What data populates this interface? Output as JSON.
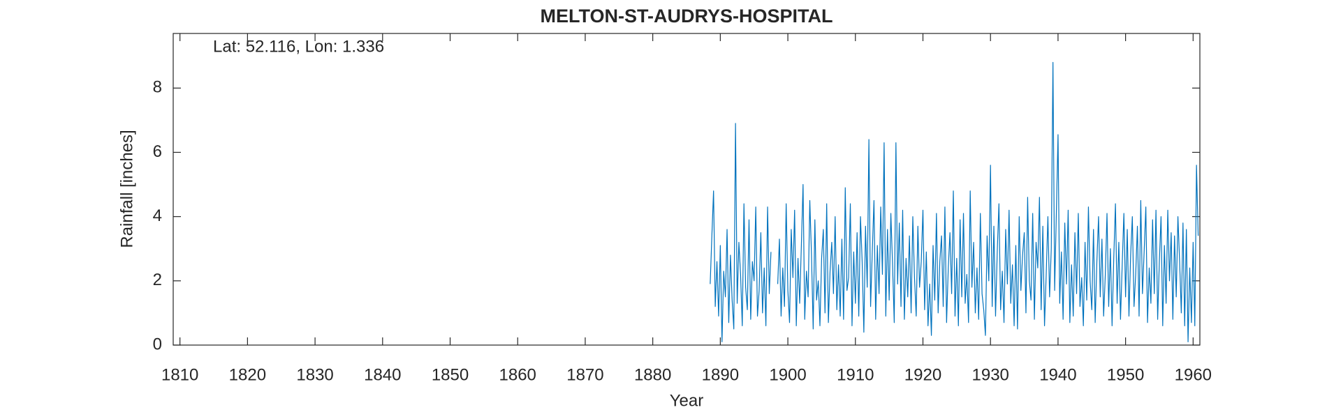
{
  "chart_data": {
    "type": "line",
    "title": "MELTON-ST-AUDRYS-HOSPITAL",
    "annotation": "Lat: 52.116, Lon: 1.336",
    "xlabel": "Year",
    "ylabel": "Rainfall [inches]",
    "color": "#0072BD",
    "xlim": [
      1809,
      1961
    ],
    "ylim": [
      0,
      9.7
    ],
    "xticks": [
      1810,
      1820,
      1830,
      1840,
      1850,
      1860,
      1870,
      1880,
      1890,
      1900,
      1910,
      1920,
      1930,
      1940,
      1950,
      1960
    ],
    "yticks": [
      0,
      2,
      4,
      6,
      8
    ],
    "x": [
      1888.5,
      1888.75,
      1889,
      1889.25,
      1889.5,
      1889.75,
      1890,
      1890.25,
      1890.5,
      1890.75,
      1891,
      1891.25,
      1891.5,
      1891.75,
      1892,
      1892.25,
      1892.5,
      1892.75,
      1893,
      1893.25,
      1893.5,
      1893.75,
      1894,
      1894.25,
      1894.5,
      1894.75,
      1895,
      1895.25,
      1895.5,
      1895.75,
      1896,
      1896.25,
      1896.5,
      1896.75,
      1897,
      1897.25,
      1897.5,
      1897.75,
      1898,
      1898.25,
      1898.5,
      1898.75,
      1899,
      1899.25,
      1899.5,
      1899.75,
      1900,
      1900.25,
      1900.5,
      1900.75,
      1901,
      1901.25,
      1901.5,
      1901.75,
      1902,
      1902.25,
      1902.5,
      1902.75,
      1903,
      1903.25,
      1903.5,
      1903.75,
      1904,
      1904.25,
      1904.5,
      1904.75,
      1905,
      1905.25,
      1905.5,
      1905.75,
      1906,
      1906.25,
      1906.5,
      1906.75,
      1907,
      1907.25,
      1907.5,
      1907.75,
      1908,
      1908.25,
      1908.5,
      1908.75,
      1909,
      1909.25,
      1909.5,
      1909.75,
      1910,
      1910.25,
      1910.5,
      1910.75,
      1911,
      1911.25,
      1911.5,
      1911.75,
      1912,
      1912.25,
      1912.5,
      1912.75,
      1913,
      1913.25,
      1913.5,
      1913.75,
      1914,
      1914.25,
      1914.5,
      1914.75,
      1915,
      1915.25,
      1915.5,
      1915.75,
      1916,
      1916.25,
      1916.5,
      1916.75,
      1917,
      1917.25,
      1917.5,
      1917.75,
      1918,
      1918.25,
      1918.5,
      1918.75,
      1919,
      1919.25,
      1919.5,
      1919.75,
      1920,
      1920.25,
      1920.5,
      1920.75,
      1921,
      1921.25,
      1921.5,
      1921.75,
      1922,
      1922.25,
      1922.5,
      1922.75,
      1923,
      1923.25,
      1923.5,
      1923.75,
      1924,
      1924.25,
      1924.5,
      1924.75,
      1925,
      1925.25,
      1925.5,
      1925.75,
      1926,
      1926.25,
      1926.5,
      1926.75,
      1927,
      1927.25,
      1927.5,
      1927.75,
      1928,
      1928.25,
      1928.5,
      1928.75,
      1929,
      1929.25,
      1929.5,
      1929.75,
      1930,
      1930.25,
      1930.5,
      1930.75,
      1931,
      1931.25,
      1931.5,
      1931.75,
      1932,
      1932.25,
      1932.5,
      1932.75,
      1933,
      1933.25,
      1933.5,
      1933.75,
      1934,
      1934.25,
      1934.5,
      1934.75,
      1935,
      1935.25,
      1935.5,
      1935.75,
      1936,
      1936.25,
      1936.5,
      1936.75,
      1937,
      1937.25,
      1937.5,
      1937.75,
      1938,
      1938.25,
      1938.5,
      1938.75,
      1939,
      1939.25,
      1939.5,
      1939.75,
      1940,
      1940.25,
      1940.5,
      1940.75,
      1941,
      1941.25,
      1941.5,
      1941.75,
      1942,
      1942.25,
      1942.5,
      1942.75,
      1943,
      1943.25,
      1943.5,
      1943.75,
      1944,
      1944.25,
      1944.5,
      1944.75,
      1945,
      1945.25,
      1945.5,
      1945.75,
      1946,
      1946.25,
      1946.5,
      1946.75,
      1947,
      1947.25,
      1947.5,
      1947.75,
      1948,
      1948.25,
      1948.5,
      1948.75,
      1949,
      1949.25,
      1949.5,
      1949.75,
      1950,
      1950.25,
      1950.5,
      1950.75,
      1951,
      1951.25,
      1951.5,
      1951.75,
      1952,
      1952.25,
      1952.5,
      1952.75,
      1953,
      1953.25,
      1953.5,
      1953.75,
      1954,
      1954.25,
      1954.5,
      1954.75,
      1955,
      1955.25,
      1955.5,
      1955.75,
      1956,
      1956.25,
      1956.5,
      1956.75,
      1957,
      1957.25,
      1957.5,
      1957.75,
      1958,
      1958.25,
      1958.5,
      1958.75,
      1959,
      1959.25,
      1959.5,
      1959.75,
      1960,
      1960.25,
      1960.5,
      1960.75
    ],
    "values": [
      1.9,
      3.4,
      4.8,
      1.2,
      2.6,
      0.9,
      3.1,
      0.1,
      2.3,
      1.5,
      3.6,
      0.7,
      2.8,
      1.4,
      0.5,
      6.9,
      1.3,
      3.2,
      2.2,
      0.6,
      4.4,
      1.8,
      1.1,
      3.9,
      0.8,
      2.6,
      2.0,
      4.3,
      0.9,
      1.7,
      3.5,
      1.0,
      2.4,
      0.6,
      4.3,
      1.6,
      2.9,
      null,
      null,
      null,
      1.9,
      3.3,
      0.9,
      2.4,
      1.2,
      4.4,
      1.7,
      0.7,
      3.6,
      2.1,
      4.2,
      0.6,
      2.7,
      1.3,
      3.1,
      5.0,
      0.8,
      2.3,
      1.5,
      4.5,
      2.8,
      0.5,
      3.9,
      1.4,
      2.0,
      0.6,
      2.7,
      3.6,
      1.0,
      4.4,
      0.7,
      2.3,
      3.2,
      1.6,
      4.0,
      1.1,
      2.5,
      0.9,
      3.3,
      0.8,
      4.9,
      1.7,
      2.1,
      4.4,
      0.6,
      2.9,
      1.3,
      3.5,
      0.9,
      4.0,
      2.6,
      0.4,
      3.7,
      1.8,
      6.4,
      1.2,
      2.9,
      4.5,
      0.8,
      3.1,
      1.6,
      4.3,
      2.2,
      6.3,
      0.9,
      3.6,
      1.4,
      4.1,
      2.5,
      0.7,
      6.3,
      1.9,
      3.8,
      1.2,
      4.2,
      0.8,
      2.7,
      1.5,
      3.4,
      1.0,
      4.0,
      2.1,
      0.9,
      3.7,
      1.8,
      2.6,
      4.2,
      1.1,
      2.9,
      0.6,
      1.9,
      0.3,
      3.1,
      1.4,
      4.1,
      1.0,
      2.6,
      3.4,
      1.2,
      4.3,
      0.7,
      2.4,
      3.5,
      1.6,
      4.8,
      0.9,
      2.7,
      0.6,
      3.9,
      1.5,
      4.1,
      1.3,
      2.2,
      0.7,
      4.8,
      1.8,
      3.2,
      1.0,
      2.4,
      0.8,
      4.1,
      1.6,
      1.1,
      0.3,
      3.4,
      2.0,
      5.6,
      1.2,
      3.7,
      0.9,
      2.9,
      4.4,
      1.1,
      2.3,
      0.7,
      3.6,
      1.9,
      4.2,
      1.3,
      2.5,
      0.6,
      3.1,
      0.5,
      4.0,
      1.7,
      2.8,
      3.5,
      1.0,
      4.6,
      2.0,
      1.4,
      4.1,
      0.8,
      3.2,
      2.4,
      4.6,
      1.1,
      3.7,
      0.6,
      2.2,
      4.0,
      1.5,
      3.0,
      8.8,
      1.7,
      4.1,
      6.55,
      1.3,
      2.9,
      0.8,
      3.8,
      1.9,
      4.2,
      0.7,
      2.5,
      0.9,
      3.5,
      1.6,
      4.1,
      1.2,
      2.1,
      0.6,
      3.2,
      1.4,
      4.3,
      2.0,
      1.1,
      3.6,
      0.7,
      2.6,
      4.0,
      1.5,
      3.3,
      0.9,
      2.2,
      4.1,
      1.2,
      3.0,
      0.6,
      2.7,
      4.4,
      1.3,
      3.2,
      0.8,
      2.5,
      4.1,
      1.5,
      3.6,
      0.9,
      2.8,
      4.0,
      1.2,
      2.2,
      3.7,
      0.9,
      4.5,
      1.6,
      2.9,
      4.3,
      0.7,
      2.4,
      1.3,
      3.9,
      1.6,
      4.2,
      0.8,
      2.6,
      4.0,
      0.6,
      3.1,
      1.3,
      4.2,
      2.0,
      3.5,
      0.8,
      3.4,
      1.5,
      4.0,
      2.6,
      1.0,
      3.8,
      0.6,
      3.6,
      0.1,
      2.4,
      0.7,
      3.2,
      0.6,
      5.6,
      3.4
    ]
  }
}
